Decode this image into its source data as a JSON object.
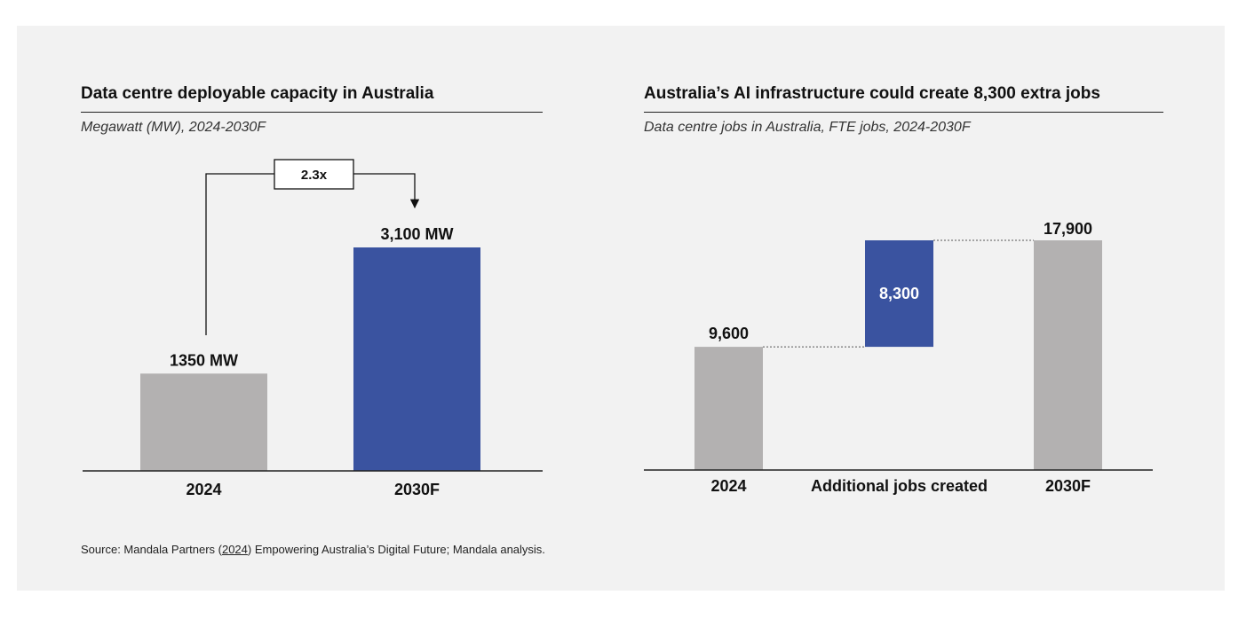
{
  "colors": {
    "gray": "#b3b1b1",
    "blue": "#3a53a0",
    "background": "#f2f2f2",
    "axis": "#222222"
  },
  "left": {
    "title": "Data centre deployable capacity in Australia",
    "subtitle": "Megawatt (MW), 2024-2030F",
    "multiplier": "2.3x"
  },
  "right": {
    "title": "Australia’s AI infrastructure could create 8,300 extra jobs",
    "subtitle": "Data centre jobs in Australia, FTE jobs, 2024-2030F"
  },
  "source": {
    "prefix": "Source: Mandala Partners (",
    "year": "2024",
    "suffix": ") Empowering Australia’s Digital Future; Mandala analysis."
  },
  "chart_data": [
    {
      "type": "bar",
      "title": "Data centre deployable capacity in Australia",
      "subtitle": "Megawatt (MW), 2024-2030F",
      "categories": [
        "2024",
        "2030F"
      ],
      "values": [
        1350,
        3100
      ],
      "value_labels": [
        "1350 MW",
        "3,100 MW"
      ],
      "colors": [
        "gray",
        "blue"
      ],
      "annotation": "2.3x",
      "ylim": [
        0,
        3600
      ]
    },
    {
      "type": "bar",
      "subtype": "waterfall",
      "title": "Australia’s AI infrastructure could create 8,300 extra jobs",
      "subtitle": "Data centre jobs in Australia, FTE jobs, 2024-2030F",
      "categories": [
        "2024",
        "Additional jobs created",
        "2030F"
      ],
      "values": [
        9600,
        8300,
        17900
      ],
      "value_labels": [
        "9,600",
        "8,300",
        "17,900"
      ],
      "colors": [
        "gray",
        "blue",
        "gray"
      ],
      "ylim": [
        0,
        17900
      ]
    }
  ]
}
